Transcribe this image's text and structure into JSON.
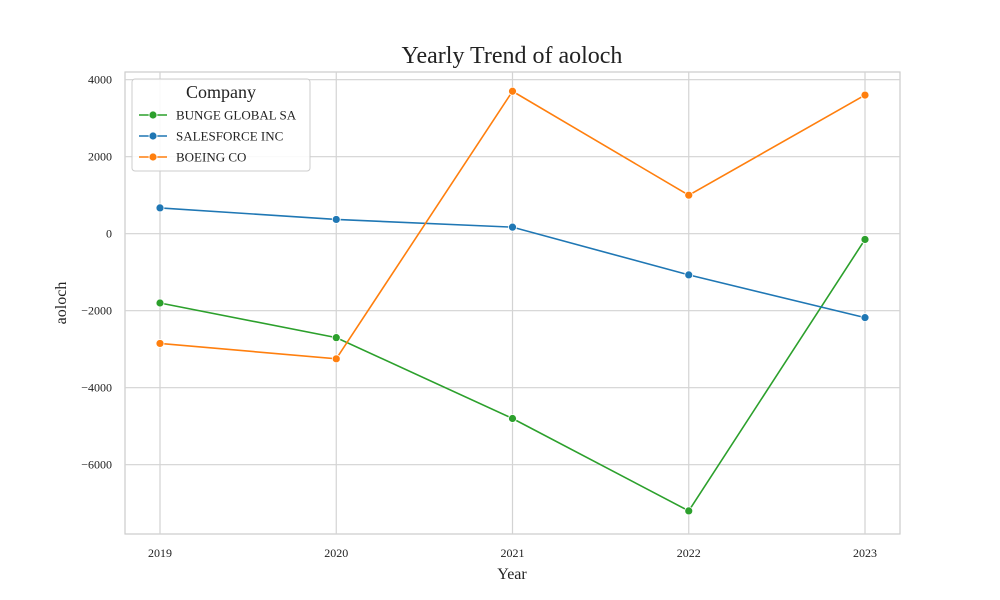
{
  "chart_data": {
    "type": "line",
    "title": "Yearly Trend of aoloch",
    "xlabel": "Year",
    "ylabel": "aoloch",
    "categories": [
      "2019",
      "2020",
      "2021",
      "2022",
      "2023"
    ],
    "y_ticks": [
      4000,
      2000,
      0,
      -2000,
      -4000,
      -6000
    ],
    "y_tick_labels": [
      "4000",
      "2000",
      "0",
      "−2000",
      "−4000",
      "−6000"
    ],
    "ylim": [
      -7800,
      4200
    ],
    "grid": true,
    "legend": {
      "title": "Company",
      "placement": "top-left"
    },
    "series": [
      {
        "name": "BUNGE GLOBAL SA",
        "color": "#2ca02c",
        "values": [
          -1800,
          -2700,
          -4800,
          -7200,
          -150
        ]
      },
      {
        "name": "SALESFORCE INC",
        "color": "#1f77b4",
        "values": [
          670,
          370,
          170,
          -1070,
          -2180
        ]
      },
      {
        "name": "BOEING CO",
        "color": "#ff7f0e",
        "values": [
          -2850,
          -3250,
          3700,
          1000,
          3600
        ]
      }
    ]
  }
}
